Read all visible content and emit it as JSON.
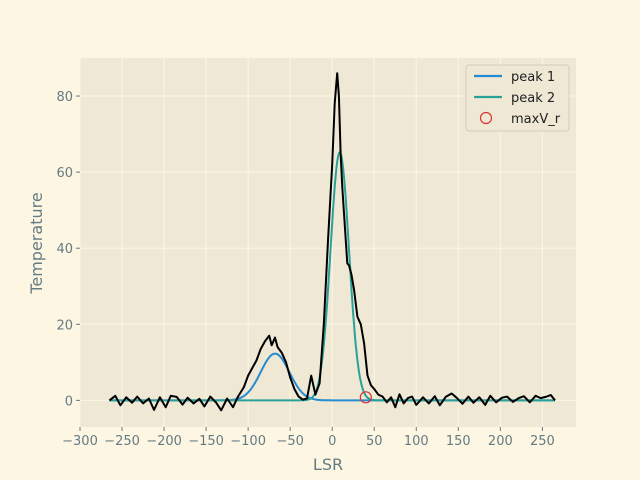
{
  "chart_data": {
    "type": "line",
    "title": "",
    "xlabel": "LSR",
    "ylabel": "Temperature",
    "xlim": [
      -300,
      290
    ],
    "ylim": [
      -7,
      90
    ],
    "grid": true,
    "legend_position": "top-right",
    "x_ticks": [
      -300,
      -250,
      -200,
      -150,
      -100,
      -50,
      0,
      50,
      100,
      150,
      200,
      250
    ],
    "x_tick_labels": [
      "−300",
      "−250",
      "−200",
      "−150",
      "−100",
      "−50",
      "0",
      "50",
      "100",
      "150",
      "200",
      "250"
    ],
    "y_ticks": [
      0,
      20,
      40,
      60,
      80
    ],
    "y_tick_labels": [
      "0",
      "20",
      "40",
      "60",
      "80"
    ],
    "colors": {
      "figure_bg": "#fdf6e3",
      "axes_bg": "#eee8d5",
      "grid": "#fdf6e3",
      "tick_text": "#657b83",
      "spectrum": "#000000",
      "peak1": "#268bd2",
      "peak2": "#2aa198",
      "marker": "#dc322f"
    },
    "spectrum": {
      "x": [
        -265,
        -258,
        -252,
        -245,
        -238,
        -232,
        -225,
        -218,
        -212,
        -205,
        -198,
        -192,
        -185,
        -178,
        -172,
        -165,
        -158,
        -152,
        -145,
        -138,
        -132,
        -125,
        -118,
        -112,
        -105,
        -100,
        -95,
        -90,
        -85,
        -80,
        -75,
        -72,
        -68,
        -65,
        -60,
        -55,
        -50,
        -45,
        -40,
        -35,
        -30,
        -25,
        -20,
        -15,
        -10,
        -5,
        0,
        3,
        6,
        8,
        10,
        12,
        15,
        18,
        20,
        23,
        26,
        30,
        34,
        38,
        42,
        46,
        50,
        55,
        60,
        65,
        70,
        75,
        80,
        85,
        90,
        95,
        100,
        108,
        115,
        122,
        128,
        135,
        142,
        148,
        155,
        162,
        168,
        175,
        182,
        188,
        195,
        202,
        208,
        215,
        222,
        228,
        235,
        242,
        248,
        255,
        260,
        265
      ],
      "y": [
        0,
        1.2,
        -1.3,
        0.8,
        -0.6,
        1.0,
        -0.8,
        0.5,
        -2.5,
        0.8,
        -1.8,
        1.2,
        0.9,
        -1.1,
        0.7,
        -0.8,
        0.4,
        -1.6,
        1.0,
        -0.6,
        -2.6,
        0.5,
        -1.8,
        1.0,
        3.5,
        6.5,
        8.5,
        10.5,
        13.5,
        15.5,
        17.0,
        14.5,
        16.5,
        14.0,
        12.5,
        10.0,
        6.0,
        3.0,
        1.0,
        0.2,
        0.5,
        6.5,
        1.5,
        4.5,
        20.0,
        42.0,
        62.0,
        78.0,
        86.0,
        80.0,
        65.0,
        56.0,
        46.0,
        36.0,
        35.5,
        33.0,
        29.0,
        22.0,
        20.0,
        15.0,
        6.5,
        4.0,
        3.0,
        1.5,
        1.0,
        -0.5,
        0.8,
        -1.8,
        1.6,
        -0.8,
        0.6,
        1.0,
        -1.2,
        0.8,
        -0.8,
        1.1,
        -1.3,
        0.9,
        1.8,
        0.7,
        -0.9,
        1.0,
        -0.6,
        0.8,
        -1.2,
        1.2,
        -0.5,
        0.7,
        1.0,
        -0.4,
        0.6,
        1.1,
        -0.5,
        1.2,
        0.6,
        1.0,
        1.4,
        0.0
      ]
    },
    "series": [
      {
        "name": "peak 1",
        "amplitude": 12.3,
        "center": -68,
        "sigma": 17
      },
      {
        "name": "peak 2",
        "amplitude": 65.2,
        "center": 9,
        "sigma": 11
      },
      {
        "name": "maxV_r",
        "x": 40,
        "y": 0.8
      }
    ]
  }
}
